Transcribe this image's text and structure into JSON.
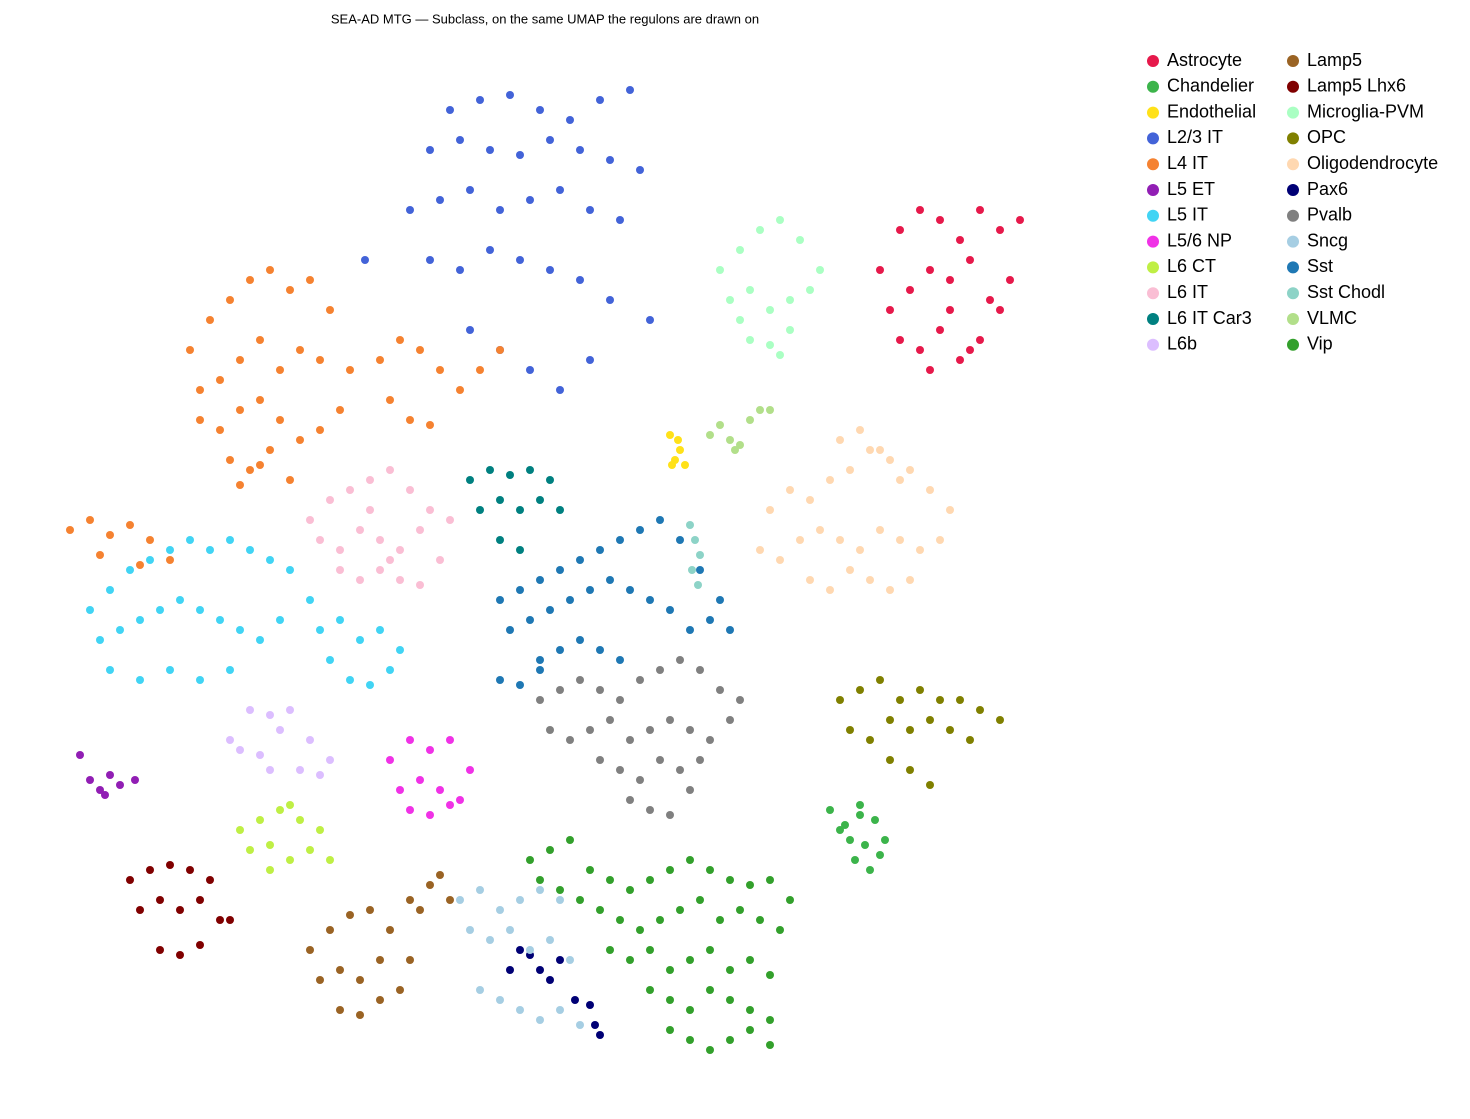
{
  "chart_data": {
    "type": "scatter",
    "title": "SEA-AD MTG — Subclass, on the same UMAP the regulons are drawn on",
    "xlim": [
      0,
      100
    ],
    "ylim": [
      0,
      100
    ],
    "legend": "upper right outside",
    "series": [
      {
        "name": "Astrocyte",
        "color": "#e6194b",
        "x": [
          83,
          85,
          87,
          89,
          91,
          93,
          95,
          97,
          84,
          86,
          88,
          90,
          92,
          94,
          96,
          85,
          87,
          89,
          91,
          93,
          95,
          88,
          90,
          92
        ],
        "y": [
          80,
          84,
          86,
          85,
          83,
          86,
          84,
          85,
          76,
          78,
          80,
          79,
          81,
          77,
          79,
          73,
          72,
          74,
          71,
          73,
          76,
          70,
          76,
          72
        ]
      },
      {
        "name": "Chandelier",
        "color": "#3cb44b",
        "x": [
          78,
          79.5,
          81,
          82.5,
          80,
          81.5,
          83,
          79,
          80.5,
          82,
          81,
          83.5
        ],
        "y": [
          26,
          24.5,
          26.5,
          25,
          23,
          22.5,
          21.5,
          24,
          21,
          20,
          25.5,
          23
        ]
      },
      {
        "name": "Endothelial",
        "color": "#ffe119",
        "x": [
          62,
          62.5,
          63,
          63.5,
          62.8,
          62.2
        ],
        "y": [
          63.5,
          61,
          62,
          60.5,
          63,
          60.5
        ]
      },
      {
        "name": "L2/3 IT",
        "color": "#4363d8",
        "x": [
          40,
          43,
          46,
          49,
          52,
          55,
          58,
          38,
          41,
          44,
          47,
          50,
          53,
          56,
          59,
          36,
          39,
          42,
          45,
          48,
          51,
          54,
          57,
          60,
          38,
          41,
          44,
          47,
          50,
          53,
          56,
          42,
          45,
          48,
          51,
          54,
          31.5
        ],
        "y": [
          96,
          97,
          97.5,
          96,
          95,
          97,
          98,
          92,
          93,
          92,
          91.5,
          93,
          92,
          91,
          90,
          86,
          87,
          88,
          86,
          87,
          88,
          86,
          85,
          75,
          81,
          80,
          82,
          81,
          80,
          79,
          77,
          74,
          72,
          70,
          68,
          71,
          81
        ]
      },
      {
        "name": "L4 IT",
        "color": "#f58231",
        "x": [
          14,
          16,
          18,
          20,
          22,
          24,
          26,
          28,
          30,
          15,
          17,
          19,
          21,
          23,
          25,
          27,
          29,
          15,
          17,
          19,
          21,
          23,
          25,
          27,
          18,
          20,
          22,
          24,
          19,
          21,
          33,
          35,
          37,
          39,
          41,
          43,
          45,
          34,
          36,
          38,
          2,
          4,
          6,
          8,
          10,
          12,
          5,
          9
        ],
        "y": [
          72,
          75,
          77,
          79,
          80,
          78,
          79,
          76,
          70,
          68,
          69,
          71,
          73,
          70,
          72,
          71,
          66,
          65,
          64,
          66,
          67,
          65,
          63,
          64,
          61,
          60,
          62,
          59,
          58.5,
          60.5,
          71,
          73,
          72,
          70,
          68,
          70,
          72,
          67,
          65,
          64.5,
          54,
          55,
          53.5,
          54.5,
          53,
          51,
          51.5,
          50.5
        ]
      },
      {
        "name": "L5 ET",
        "color": "#911eb4",
        "x": [
          3,
          4,
          5,
          6,
          7,
          8.5,
          5.5
        ],
        "y": [
          31.5,
          29,
          28,
          29.5,
          28.5,
          29,
          27.5
        ]
      },
      {
        "name": "L5 IT",
        "color": "#42d4f4",
        "x": [
          4,
          6,
          8,
          10,
          12,
          14,
          16,
          18,
          20,
          22,
          24,
          26,
          5,
          7,
          9,
          11,
          13,
          15,
          17,
          19,
          21,
          23,
          6,
          9,
          12,
          15,
          18,
          27,
          29,
          31,
          33,
          35,
          28,
          30,
          32,
          34
        ],
        "y": [
          46,
          48,
          50,
          51,
          52,
          53,
          52,
          53,
          52,
          51,
          50,
          47,
          43,
          44,
          45,
          46,
          47,
          46,
          45,
          44,
          43,
          45,
          40,
          39,
          40,
          39,
          40,
          44,
          45,
          43,
          44,
          42,
          41,
          39,
          38.5,
          40
        ]
      },
      {
        "name": "L5/6 NP",
        "color": "#f032e6",
        "x": [
          34,
          36,
          38,
          40,
          42,
          35,
          37,
          39,
          41,
          36,
          38,
          40
        ],
        "y": [
          31,
          33,
          32,
          33,
          30,
          28,
          29,
          28,
          27,
          26,
          25.5,
          26.5
        ]
      },
      {
        "name": "L6 CT",
        "color": "#bfef45",
        "x": [
          19,
          21,
          23,
          25,
          27,
          20,
          22,
          24,
          26,
          28,
          22,
          24
        ],
        "y": [
          24,
          25,
          26,
          25,
          24,
          22,
          22.5,
          21,
          22,
          21,
          20,
          26.5
        ]
      },
      {
        "name": "L6 IT",
        "color": "#fabed4",
        "x": [
          26,
          28,
          30,
          32,
          34,
          36,
          38,
          40,
          27,
          29,
          31,
          33,
          35,
          37,
          39,
          29,
          31,
          33,
          35,
          37,
          32,
          34
        ],
        "y": [
          55,
          57,
          58,
          59,
          60,
          58,
          56,
          55,
          53,
          52,
          54,
          53,
          52,
          54,
          51,
          50,
          49,
          50,
          49,
          48.5,
          56,
          51
        ]
      },
      {
        "name": "L6 IT Car3",
        "color": "#008080",
        "x": [
          42,
          44,
          46,
          48,
          50,
          43,
          45,
          47,
          49,
          51,
          45,
          47
        ],
        "y": [
          59,
          60,
          59.5,
          60,
          59,
          56,
          57,
          56,
          57,
          56,
          53,
          52
        ]
      },
      {
        "name": "L6b",
        "color": "#dcbeff",
        "x": [
          18,
          20,
          22,
          24,
          26,
          28,
          19,
          21,
          23,
          25,
          27,
          22
        ],
        "y": [
          33,
          36,
          35.5,
          36,
          33,
          31,
          32,
          31.5,
          34,
          30,
          29.5,
          30
        ]
      },
      {
        "name": "Lamp5",
        "color": "#9a6324",
        "x": [
          26,
          28,
          30,
          32,
          34,
          36,
          27,
          29,
          31,
          33,
          35,
          29,
          31,
          33,
          36,
          38,
          40,
          37,
          39
        ],
        "y": [
          12,
          14,
          15.5,
          16,
          14,
          11,
          9,
          10,
          9,
          11,
          8,
          6,
          5.5,
          7,
          17,
          18.5,
          17,
          16,
          19.5
        ]
      },
      {
        "name": "Lamp5 Lhx6",
        "color": "#800000",
        "x": [
          8,
          10,
          12,
          14,
          16,
          18,
          9,
          11,
          13,
          15,
          17,
          11,
          13,
          15
        ],
        "y": [
          19,
          20,
          20.5,
          20,
          19,
          15,
          16,
          17,
          16,
          17,
          15,
          12,
          11.5,
          12.5
        ]
      },
      {
        "name": "Microglia-PVM",
        "color": "#aaffc3",
        "x": [
          67,
          69,
          71,
          73,
          75,
          77,
          68,
          70,
          72,
          74,
          76,
          70,
          72,
          74,
          69,
          73
        ],
        "y": [
          80,
          82,
          84,
          85,
          83,
          80,
          77,
          78,
          76,
          77,
          78,
          73,
          72.5,
          74,
          75,
          71.5
        ]
      },
      {
        "name": "OPC",
        "color": "#808000",
        "x": [
          79,
          81,
          83,
          85,
          87,
          89,
          91,
          93,
          95,
          80,
          82,
          84,
          86,
          88,
          90,
          92,
          84,
          86,
          88
        ],
        "y": [
          37,
          38,
          39,
          37,
          38,
          37,
          37,
          36,
          35,
          34,
          33,
          35,
          34,
          35,
          34,
          33,
          31,
          30,
          28.5
        ]
      },
      {
        "name": "Oligodendrocyte",
        "color": "#ffd8b1",
        "x": [
          72,
          74,
          76,
          78,
          80,
          82,
          84,
          86,
          88,
          90,
          71,
          73,
          75,
          77,
          79,
          81,
          83,
          85,
          87,
          89,
          76,
          78,
          80,
          82,
          84,
          86,
          79,
          81,
          83,
          85
        ],
        "y": [
          56,
          58,
          57,
          59,
          60,
          62,
          61,
          60,
          58,
          56,
          52,
          51,
          53,
          54,
          53,
          52,
          54,
          53,
          52,
          53,
          49,
          48,
          50,
          49,
          48,
          49,
          63,
          64,
          62,
          59
        ]
      },
      {
        "name": "Pax6",
        "color": "#000075",
        "x": [
          46,
          47,
          48,
          49,
          50,
          51,
          52.5,
          54,
          54.5,
          55
        ],
        "y": [
          10,
          12,
          11.5,
          10,
          9,
          11,
          7,
          6.5,
          4.5,
          3.5
        ]
      },
      {
        "name": "Pvalb",
        "color": "#808080",
        "x": [
          49,
          51,
          53,
          55,
          57,
          59,
          61,
          63,
          65,
          67,
          69,
          50,
          52,
          54,
          56,
          58,
          60,
          62,
          64,
          66,
          68,
          55,
          57,
          59,
          61,
          63,
          65,
          58,
          60,
          62,
          64
        ],
        "y": [
          37,
          38,
          39,
          38,
          37,
          39,
          40,
          41,
          40,
          38,
          37,
          34,
          33,
          34,
          35,
          33,
          34,
          35,
          34,
          33,
          35,
          31,
          30,
          29,
          31,
          30,
          31,
          27,
          26,
          25.5,
          28
        ]
      },
      {
        "name": "Sncg",
        "color": "#a6cee3",
        "x": [
          41,
          43,
          45,
          47,
          49,
          51,
          42,
          44,
          46,
          48,
          50,
          52,
          43,
          45,
          47,
          49,
          51,
          53
        ],
        "y": [
          17,
          18,
          16,
          17,
          18,
          17,
          14,
          13,
          14,
          12,
          13,
          11,
          8,
          7,
          6,
          5,
          6,
          4.5
        ]
      },
      {
        "name": "Sst",
        "color": "#1f78b4",
        "x": [
          45,
          47,
          49,
          51,
          53,
          55,
          57,
          59,
          61,
          63,
          65,
          67,
          46,
          48,
          50,
          52,
          54,
          56,
          58,
          60,
          62,
          64,
          66,
          68,
          49,
          51,
          53,
          55,
          57,
          45,
          47,
          49
        ],
        "y": [
          47,
          48,
          49,
          50,
          51,
          52,
          53,
          54,
          55,
          53,
          50,
          47,
          44,
          45,
          46,
          47,
          48,
          49,
          48,
          47,
          46,
          44,
          45,
          44,
          41,
          42,
          43,
          42,
          41,
          39,
          38.5,
          40
        ]
      },
      {
        "name": "Sst Chodl",
        "color": "#8dd3c7",
        "x": [
          64,
          64.5,
          65,
          64.2,
          64.8
        ],
        "y": [
          54.5,
          53,
          51.5,
          50,
          48.5
        ]
      },
      {
        "name": "VLMC",
        "color": "#b2df8a",
        "x": [
          66,
          67,
          68,
          69,
          70,
          71,
          72,
          68.5
        ],
        "y": [
          63.5,
          64.5,
          63,
          62.5,
          65,
          66,
          66,
          62
        ]
      },
      {
        "name": "Vip",
        "color": "#33a02c",
        "x": [
          48,
          50,
          52,
          54,
          56,
          58,
          60,
          62,
          64,
          66,
          68,
          70,
          72,
          74,
          49,
          51,
          53,
          55,
          57,
          59,
          61,
          63,
          65,
          67,
          69,
          71,
          73,
          56,
          58,
          60,
          62,
          64,
          66,
          68,
          70,
          72,
          60,
          62,
          64,
          66,
          68,
          70,
          72,
          62,
          64,
          66,
          68,
          70,
          72
        ],
        "y": [
          21,
          22,
          23,
          20,
          19,
          18,
          19,
          20,
          21,
          20,
          19,
          18.5,
          19,
          17,
          19,
          18,
          17,
          16,
          15,
          14,
          15,
          16,
          17,
          15,
          16,
          15,
          14,
          12,
          11,
          12,
          10,
          11,
          12,
          10,
          11,
          9.5,
          8,
          7,
          6,
          8,
          7,
          6,
          5,
          4,
          3,
          2,
          3,
          4,
          2.5
        ]
      }
    ]
  }
}
